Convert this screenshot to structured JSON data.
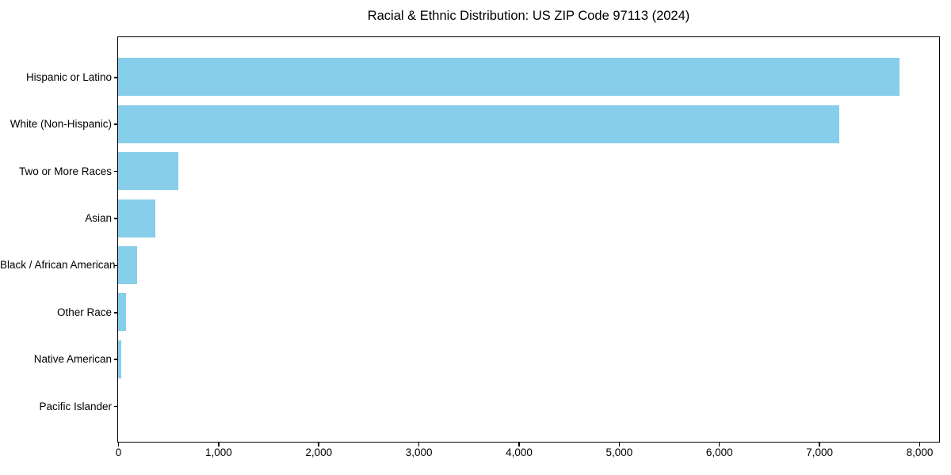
{
  "chart_data": {
    "type": "bar",
    "orientation": "horizontal",
    "title": "Racial & Ethnic Distribution: US ZIP Code 97113 (2024)",
    "categories": [
      "Hispanic or Latino",
      "White (Non-Hispanic)",
      "Two or More Races",
      "Asian",
      "Black / African American",
      "Other Race",
      "Native American",
      "Pacific Islander"
    ],
    "values": [
      7800,
      7200,
      600,
      370,
      190,
      80,
      30,
      0
    ],
    "xlabel": "",
    "ylabel": "",
    "xlim": [
      0,
      8190
    ],
    "x_ticks": [
      0,
      1000,
      2000,
      3000,
      4000,
      5000,
      6000,
      7000,
      8000
    ],
    "x_tick_labels": [
      "0",
      "1,000",
      "2,000",
      "3,000",
      "4,000",
      "5,000",
      "6,000",
      "7,000",
      "8,000"
    ],
    "bar_color": "#87CEEB",
    "text_color": "#000000",
    "axis_color": "#000000",
    "background_color": "#ffffff",
    "grid": false,
    "legend": false
  }
}
